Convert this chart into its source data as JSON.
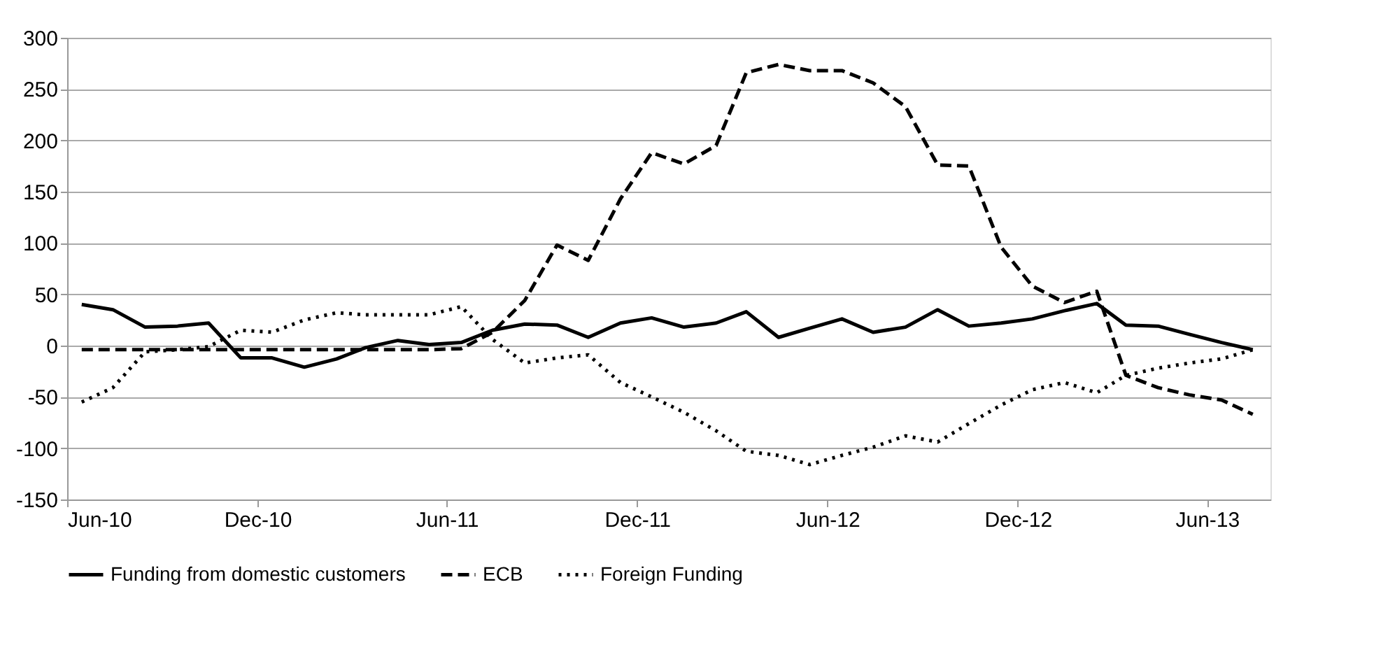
{
  "chart_data": {
    "type": "line",
    "x": [
      "2010-06-15",
      "2010-07-15",
      "2010-08-15",
      "2010-09-15",
      "2010-10-15",
      "2010-11-15",
      "2010-12-15",
      "2011-01-15",
      "2011-02-15",
      "2011-03-15",
      "2011-04-15",
      "2011-05-15",
      "2011-06-15",
      "2011-07-15",
      "2011-08-15",
      "2011-09-15",
      "2011-10-15",
      "2011-11-15",
      "2011-12-15",
      "2012-01-15",
      "2012-02-15",
      "2012-03-15",
      "2012-04-15",
      "2012-05-15",
      "2012-06-15",
      "2012-07-15",
      "2012-08-15",
      "2012-09-15",
      "2012-10-15",
      "2012-11-15",
      "2012-12-15",
      "2013-01-15",
      "2013-02-15",
      "2013-03-15",
      "2013-04-15",
      "2013-05-15",
      "2013-06-15",
      "2013-07-15"
    ],
    "series": [
      {
        "name": "Funding from domestic customers",
        "color": "#000000",
        "line_style": "solid",
        "values": [
          40,
          35,
          18,
          19,
          22,
          -12,
          -12,
          -21,
          -13,
          -2,
          5,
          1,
          3,
          15,
          21,
          20,
          8,
          22,
          27,
          18,
          22,
          33,
          8,
          17,
          26,
          13,
          18,
          35,
          19,
          22,
          26,
          34,
          41,
          20,
          19,
          11,
          3,
          -4
        ]
      },
      {
        "name": "ECB",
        "color": "#000000",
        "line_style": "dashed",
        "values": [
          -4,
          -4,
          -4,
          -4,
          -4,
          -4,
          -4,
          -4,
          -4,
          -4,
          -4,
          -4,
          -3,
          13,
          44,
          98,
          83,
          143,
          188,
          177,
          195,
          266,
          274,
          268,
          268,
          256,
          233,
          176,
          175,
          96,
          58,
          42,
          53,
          -29,
          -41,
          -48,
          -53,
          -67
        ]
      },
      {
        "name": "Foreign Funding",
        "color": "#000000",
        "line_style": "dotted",
        "values": [
          -55,
          -41,
          -6,
          -4,
          -1,
          15,
          13,
          25,
          32,
          30,
          30,
          30,
          38,
          6,
          -17,
          -12,
          -9,
          -36,
          -50,
          -65,
          -83,
          -103,
          -107,
          -116,
          -107,
          -99,
          -88,
          -94,
          -76,
          -58,
          -43,
          -36,
          -46,
          -29,
          -22,
          -17,
          -13,
          -4
        ]
      }
    ],
    "xlim": [
      "2010-06-01",
      "2013-08-01"
    ],
    "xticks": [
      {
        "value": "2010-06-01",
        "label": "Jun-10"
      },
      {
        "value": "2010-12-01",
        "label": "Dec-10"
      },
      {
        "value": "2011-06-01",
        "label": "Jun-11"
      },
      {
        "value": "2011-12-01",
        "label": "Dec-11"
      },
      {
        "value": "2012-06-01",
        "label": "Jun-12"
      },
      {
        "value": "2012-12-01",
        "label": "Dec-12"
      },
      {
        "value": "2013-06-01",
        "label": "Jun-13"
      }
    ],
    "ylim": [
      -150,
      300
    ],
    "yticks": [
      -150,
      -100,
      -50,
      0,
      50,
      100,
      150,
      200,
      250,
      300
    ],
    "grid": "y",
    "legend": "bottom",
    "marker": "none"
  }
}
